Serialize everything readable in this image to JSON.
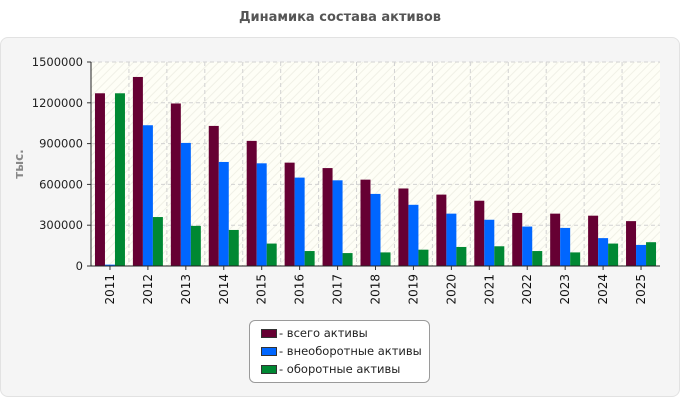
{
  "title": "Динамика состава активов",
  "chart_data": {
    "type": "bar",
    "title": "Динамика состава активов",
    "ylabel": "тыс.",
    "xlabel": "",
    "ylim": [
      0,
      1500000
    ],
    "y_ticks": [
      "0",
      "300000",
      "600000",
      "900000",
      "1200000",
      "1500000"
    ],
    "grid": true,
    "legend_position": "bottom",
    "categories": [
      "2011",
      "2012",
      "2013",
      "2014",
      "2015",
      "2016",
      "2017",
      "2018",
      "2019",
      "2020",
      "2021",
      "2022",
      "2023",
      "2024",
      "2025"
    ],
    "series": [
      {
        "name": "- всего активы",
        "color": "#660033",
        "values": [
          1270000,
          1390000,
          1195000,
          1030000,
          920000,
          760000,
          720000,
          635000,
          570000,
          525000,
          480000,
          390000,
          385000,
          370000,
          330000
        ]
      },
      {
        "name": "- внеоборотные активы",
        "color": "#0066ff",
        "values": [
          10000,
          1035000,
          905000,
          765000,
          755000,
          650000,
          630000,
          530000,
          450000,
          385000,
          340000,
          290000,
          280000,
          205000,
          155000
        ]
      },
      {
        "name": "- оборотные активы",
        "color": "#008833",
        "values": [
          1270000,
          360000,
          295000,
          265000,
          165000,
          110000,
          95000,
          100000,
          120000,
          140000,
          145000,
          110000,
          100000,
          165000,
          175000
        ]
      }
    ]
  }
}
